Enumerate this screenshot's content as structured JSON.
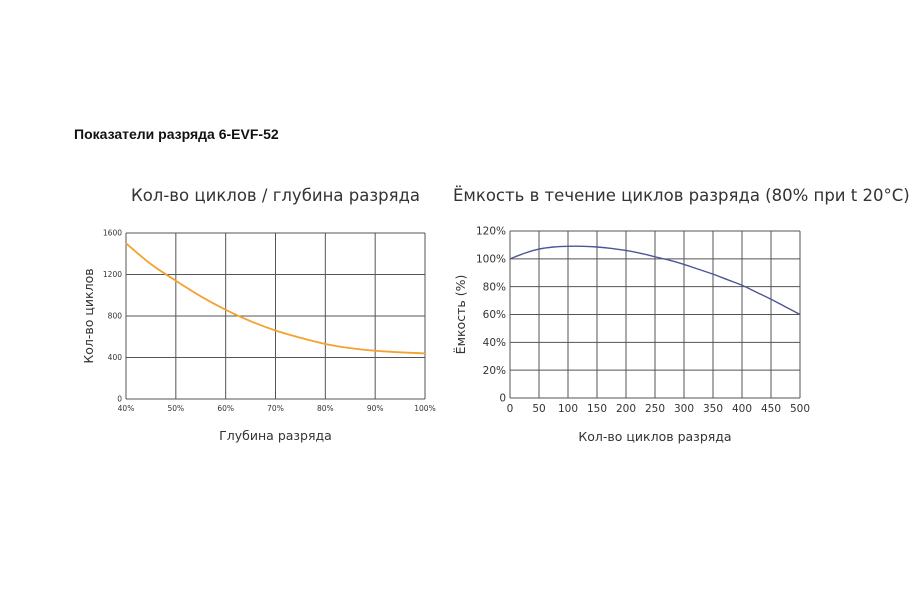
{
  "page": {
    "heading": "Показатели разряда 6-EVF-52"
  },
  "colors": {
    "orange_curve": "#f5a12f",
    "blue_curve": "#4c5596",
    "grid": "#555555"
  },
  "chart_data": [
    {
      "type": "line",
      "title": "Кол-во циклов / глубина разряда",
      "xlabel": "Глубина разряда",
      "ylabel": "Кол-во циклов",
      "x_ticks": [
        "40%",
        "50%",
        "60%",
        "70%",
        "80%",
        "90%",
        "100%"
      ],
      "y_ticks": [
        "0",
        "400",
        "800",
        "1200",
        "1600"
      ],
      "xlim": [
        40,
        100
      ],
      "ylim": [
        0,
        1600
      ],
      "grid": true,
      "series": [
        {
          "x": [
            40,
            45,
            50,
            55,
            60,
            65,
            70,
            75,
            80,
            85,
            90,
            95,
            100
          ],
          "y": [
            1500,
            1300,
            1140,
            990,
            860,
            750,
            660,
            590,
            530,
            490,
            465,
            450,
            440
          ]
        }
      ]
    },
    {
      "type": "line",
      "title": "Ёмкость в течение циклов разряда (80% при t 20°C)",
      "xlabel": "Кол-во циклов разряда",
      "ylabel": "Ёмкость (%)",
      "x_ticks": [
        "0",
        "50",
        "100",
        "150",
        "200",
        "250",
        "300",
        "350",
        "400",
        "450",
        "500"
      ],
      "y_ticks": [
        "0",
        "20%",
        "40%",
        "60%",
        "80%",
        "100%",
        "120%"
      ],
      "xlim": [
        0,
        500
      ],
      "ylim": [
        0,
        120
      ],
      "grid": true,
      "series": [
        {
          "x": [
            0,
            25,
            50,
            75,
            100,
            125,
            150,
            175,
            200,
            225,
            250,
            275,
            300,
            325,
            350,
            375,
            400,
            425,
            450,
            475,
            500
          ],
          "y": [
            100,
            104,
            107,
            108.5,
            109,
            109,
            108.5,
            107.5,
            106,
            104,
            101.5,
            99,
            96,
            92.5,
            89,
            85,
            81,
            76,
            71,
            65.5,
            60
          ]
        }
      ]
    }
  ]
}
